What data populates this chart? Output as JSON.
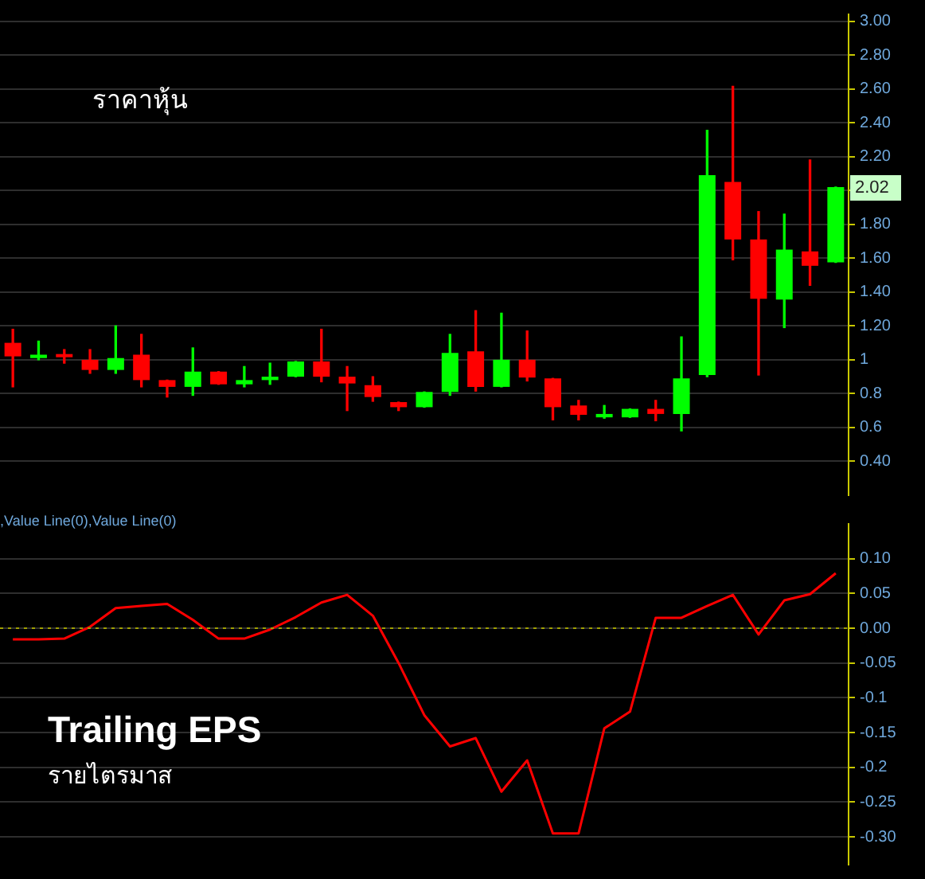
{
  "chart_data": [
    {
      "type": "candlestick",
      "categories": [
        null,
        null,
        null,
        null,
        null,
        null,
        null,
        null,
        null,
        null,
        null,
        null,
        null,
        null,
        null,
        null,
        null,
        null,
        null,
        null,
        null,
        null,
        null,
        null,
        null,
        null,
        null,
        null,
        null,
        null,
        null,
        null,
        null
      ],
      "ohlc": [
        [
          1.1,
          1.18,
          0.84,
          1.02
        ],
        [
          1.01,
          1.11,
          1.0,
          1.03
        ],
        [
          1.03,
          1.06,
          0.98,
          1.015
        ],
        [
          1.0,
          1.06,
          0.92,
          0.94
        ],
        [
          0.94,
          1.2,
          0.92,
          1.01
        ],
        [
          1.03,
          1.15,
          0.84,
          0.88
        ],
        [
          0.88,
          0.88,
          0.78,
          0.84
        ],
        [
          0.84,
          1.07,
          0.79,
          0.93
        ],
        [
          0.93,
          0.93,
          0.855,
          0.855
        ],
        [
          0.855,
          0.96,
          0.84,
          0.88
        ],
        [
          0.88,
          0.98,
          0.855,
          0.9
        ],
        [
          0.9,
          0.99,
          0.9,
          0.99
        ],
        [
          0.99,
          1.18,
          0.87,
          0.9
        ],
        [
          0.9,
          0.96,
          0.7,
          0.86
        ],
        [
          0.85,
          0.9,
          0.755,
          0.78
        ],
        [
          0.75,
          0.75,
          0.7,
          0.72
        ],
        [
          0.72,
          0.81,
          0.72,
          0.81
        ],
        [
          0.81,
          1.15,
          0.79,
          1.04
        ],
        [
          1.05,
          1.29,
          0.815,
          0.84
        ],
        [
          0.84,
          1.275,
          0.84,
          1.0
        ],
        [
          1.0,
          1.17,
          0.875,
          0.895
        ],
        [
          0.89,
          0.89,
          0.645,
          0.72
        ],
        [
          0.73,
          0.76,
          0.645,
          0.675
        ],
        [
          0.66,
          0.73,
          0.655,
          0.68
        ],
        [
          0.66,
          0.71,
          0.66,
          0.71
        ],
        [
          0.71,
          0.76,
          0.64,
          0.68
        ],
        [
          0.68,
          1.135,
          0.58,
          0.89
        ],
        [
          0.91,
          2.355,
          0.9,
          2.09
        ],
        [
          2.05,
          2.615,
          1.59,
          1.71
        ],
        [
          1.71,
          1.875,
          0.91,
          1.36
        ],
        [
          1.355,
          1.86,
          1.19,
          1.65
        ],
        [
          1.64,
          2.18,
          1.44,
          1.555
        ],
        [
          1.575,
          2.02,
          1.575,
          2.02
        ]
      ],
      "colors": [
        "#ff0000",
        "#00ff00",
        "#ff0000",
        "#ff0000",
        "#00ff00",
        "#ff0000",
        "#ff0000",
        "#00ff00",
        "#ff0000",
        "#00ff00",
        "#00ff00",
        "#00ff00",
        "#ff0000",
        "#ff0000",
        "#ff0000",
        "#ff0000",
        "#00ff00",
        "#00ff00",
        "#ff0000",
        "#00ff00",
        "#ff0000",
        "#ff0000",
        "#ff0000",
        "#00ff00",
        "#00ff00",
        "#ff0000",
        "#00ff00",
        "#00ff00",
        "#ff0000",
        "#ff0000",
        "#00ff00",
        "#ff0000",
        "#00ff00"
      ],
      "ylim": [
        0.2,
        3.04
      ],
      "yticks": [
        {
          "value": 3,
          "label": "3.00"
        },
        {
          "value": 2.8,
          "label": "2.80"
        },
        {
          "value": 2.6,
          "label": "2.60"
        },
        {
          "value": 2.4,
          "label": "2.40"
        },
        {
          "value": 2.2,
          "label": "2.20"
        },
        {
          "value": 2,
          "label": null
        },
        {
          "value": 1.8,
          "label": "1.80"
        },
        {
          "value": 1.6,
          "label": "1.60"
        },
        {
          "value": 1.4,
          "label": "1.40"
        },
        {
          "value": 1.2,
          "label": "1.20"
        },
        1,
        0.8,
        0.6,
        {
          "value": 0.4,
          "label": "0.40"
        }
      ],
      "grid": "y",
      "tick_labels": "y",
      "annotations": [
        "ราคาหุ้น",
        "2.02"
      ]
    },
    {
      "type": "line",
      "categories": [
        null,
        null,
        null,
        null,
        null,
        null,
        null,
        null,
        null,
        null,
        null,
        null,
        null,
        null,
        null,
        null,
        null,
        null,
        null,
        null,
        null,
        null,
        null,
        null,
        null,
        null,
        null,
        null,
        null,
        null,
        null,
        null,
        null
      ],
      "series": [
        {
          "color": "#ff0000",
          "values": [
            -0.016,
            -0.016,
            -0.015,
            0.002,
            0.029,
            0.032,
            0.035,
            0.012,
            -0.015,
            -0.015,
            -0.002,
            0.016,
            0.037,
            0.048,
            0.018,
            -0.05,
            -0.125,
            -0.17,
            -0.158,
            -0.235,
            -0.19,
            -0.295,
            -0.295,
            -0.144,
            -0.12,
            0.015,
            0.015,
            0.032,
            0.048,
            -0.009,
            0.04,
            0.049,
            0.079
          ]
        }
      ],
      "ylim": [
        -0.34,
        0.15
      ],
      "yticks": [
        {
          "value": 0.1,
          "label": "0.10"
        },
        0.05,
        {
          "value": 0,
          "label": "0.00"
        },
        -0.05,
        -0.1,
        -0.15,
        -0.2,
        -0.25,
        {
          "value": -0.3,
          "label": "-0.30"
        }
      ],
      "grid": "y",
      "tick_labels": "y",
      "ref_lines": [
        {
          "axis": "y",
          "value": 0,
          "color": "#a0a000",
          "line_style": "dotted"
        }
      ],
      "annotations": [
        ",Value Line(0),Value Line(0)",
        "Trailing EPS",
        "รายไตรมาส"
      ]
    }
  ]
}
